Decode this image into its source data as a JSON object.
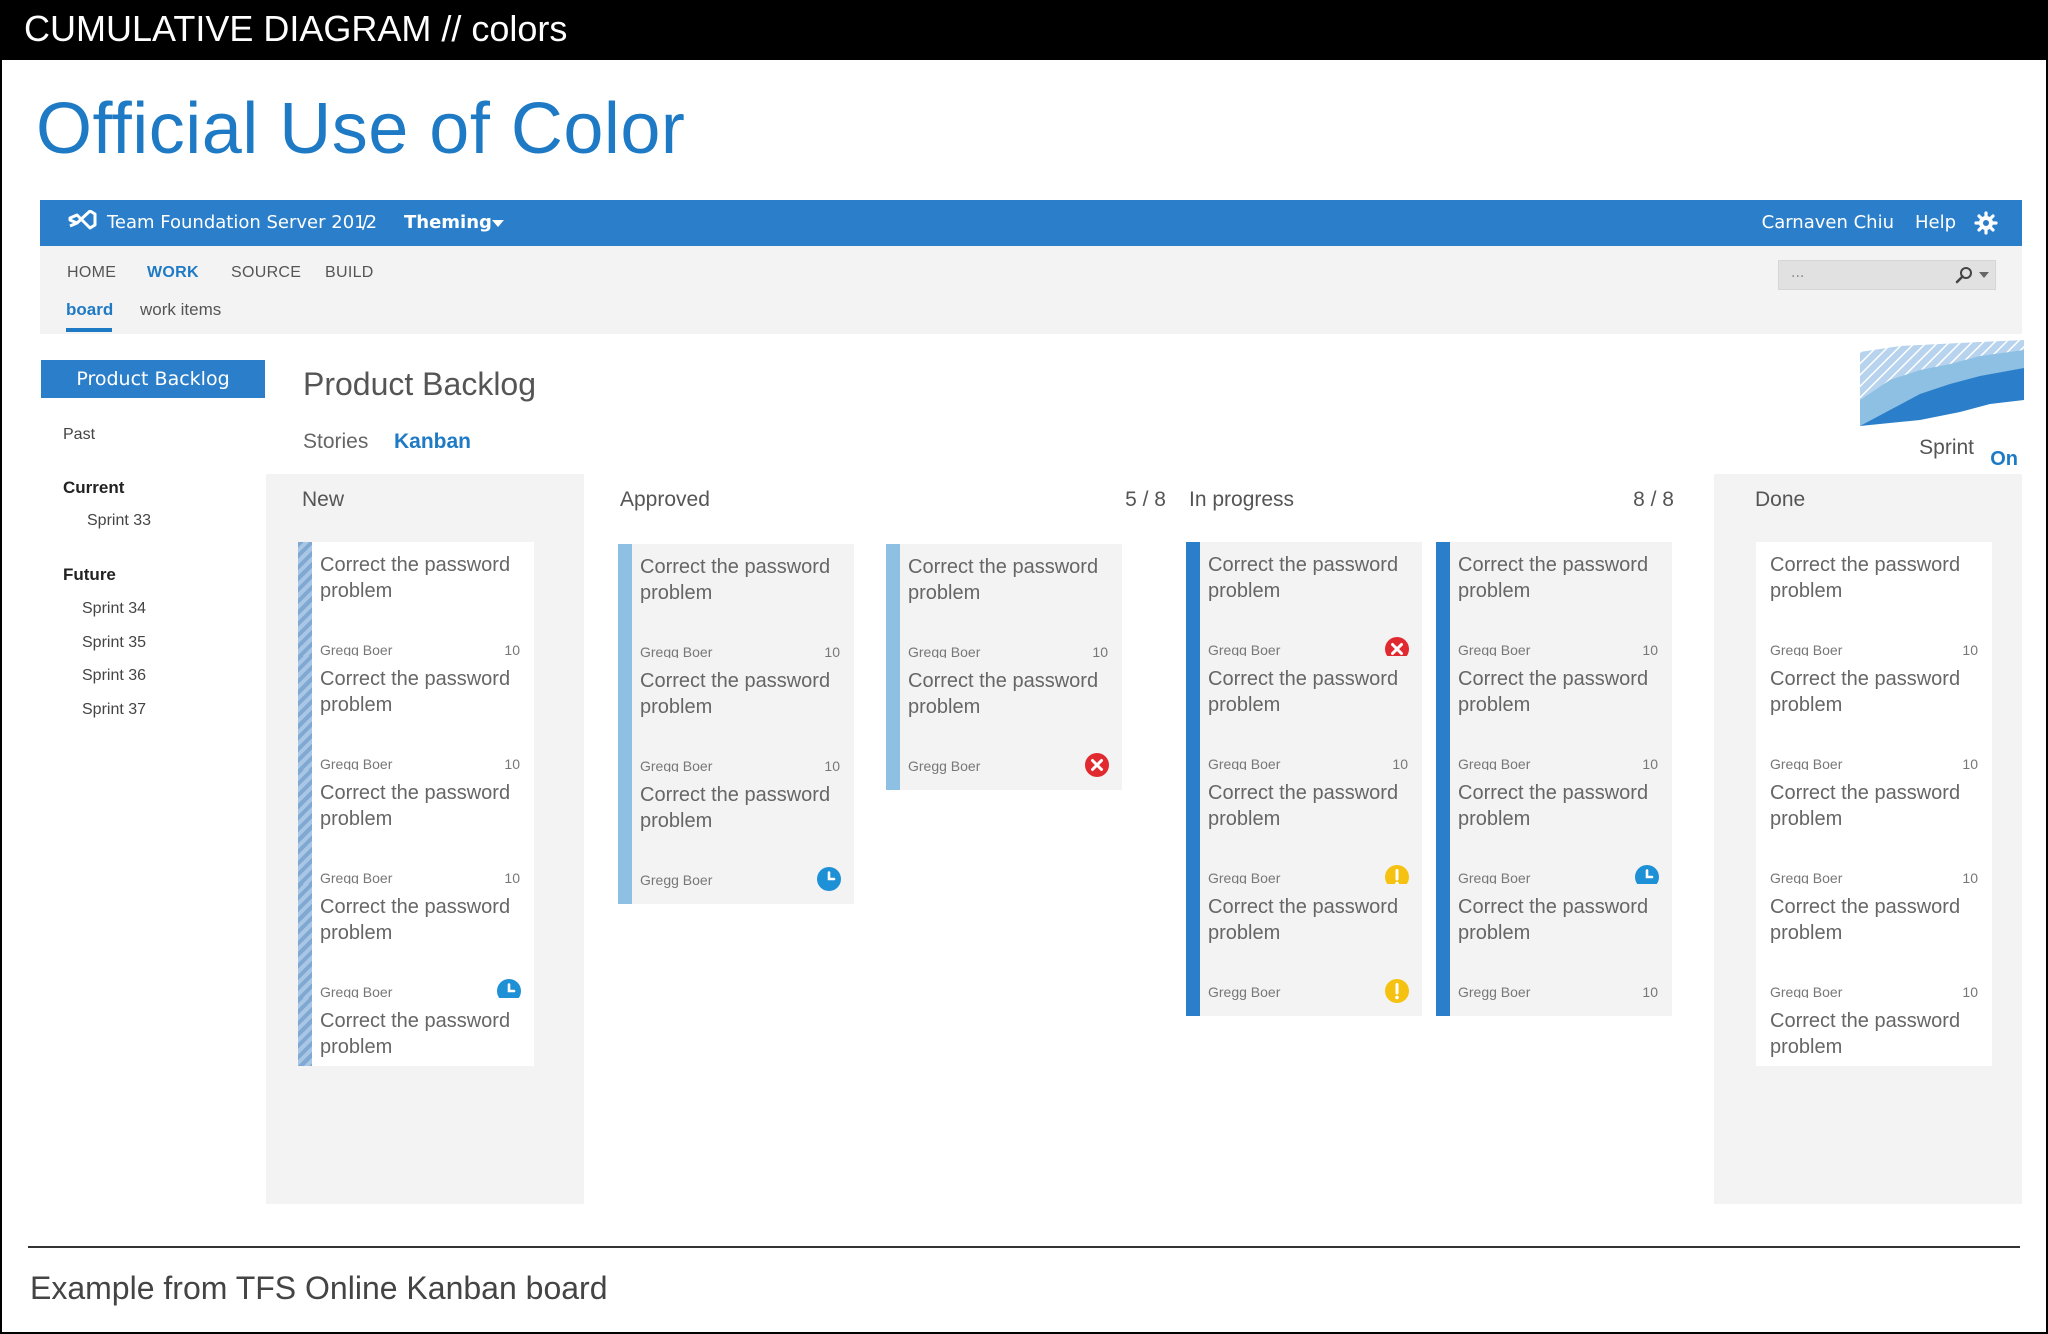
{
  "header": {
    "text": "CUMULATIVE DIAGRAM // colors"
  },
  "page_title": "Official Use of Color",
  "footer": {
    "text": "Example from TFS Online Kanban board"
  },
  "colors": {
    "brand_blue": "#2b7fca",
    "accent_blue": "#1e7ac4",
    "new_bar": "#8fb4d9",
    "approved_bar": "#8ec0e4",
    "in_progress_bar": "#2b7fca",
    "error_red": "#e02a2f",
    "warning_yellow": "#f5c211",
    "clock_blue": "#1e90d6"
  },
  "app": {
    "topbar": {
      "product": "Team Foundation Server 2012",
      "separator": "/",
      "project": "Theming",
      "user": "Carnaven Chiu",
      "help": "Help"
    },
    "nav": {
      "items": [
        "HOME",
        "WORK",
        "SOURCE",
        "BUILD"
      ],
      "active": "WORK",
      "sub_items": [
        "board",
        "work items"
      ],
      "search_placeholder": "..."
    },
    "left_panel": {
      "selected": "Product Backlog",
      "past": "Past",
      "current_heading": "Current",
      "current_items": [
        "Sprint 33"
      ],
      "future_heading": "Future",
      "future_items": [
        "Sprint 34",
        "Sprint 35",
        "Sprint 36",
        "Sprint 37"
      ]
    },
    "main": {
      "title": "Product Backlog",
      "tabs": [
        "Stories",
        "Kanban"
      ],
      "active_tab": "Kanban",
      "sprint_label": "Sprint",
      "sprint_toggle": "On",
      "columns": [
        {
          "title": "New",
          "count": ""
        },
        {
          "title": "Approved",
          "count": "5 / 8"
        },
        {
          "title": "In progress",
          "count": "8 / 8"
        },
        {
          "title": "Done",
          "count": ""
        }
      ],
      "card": {
        "title": "Correct the password problem",
        "owner": "Gregg Boer",
        "points": "10"
      }
    }
  }
}
